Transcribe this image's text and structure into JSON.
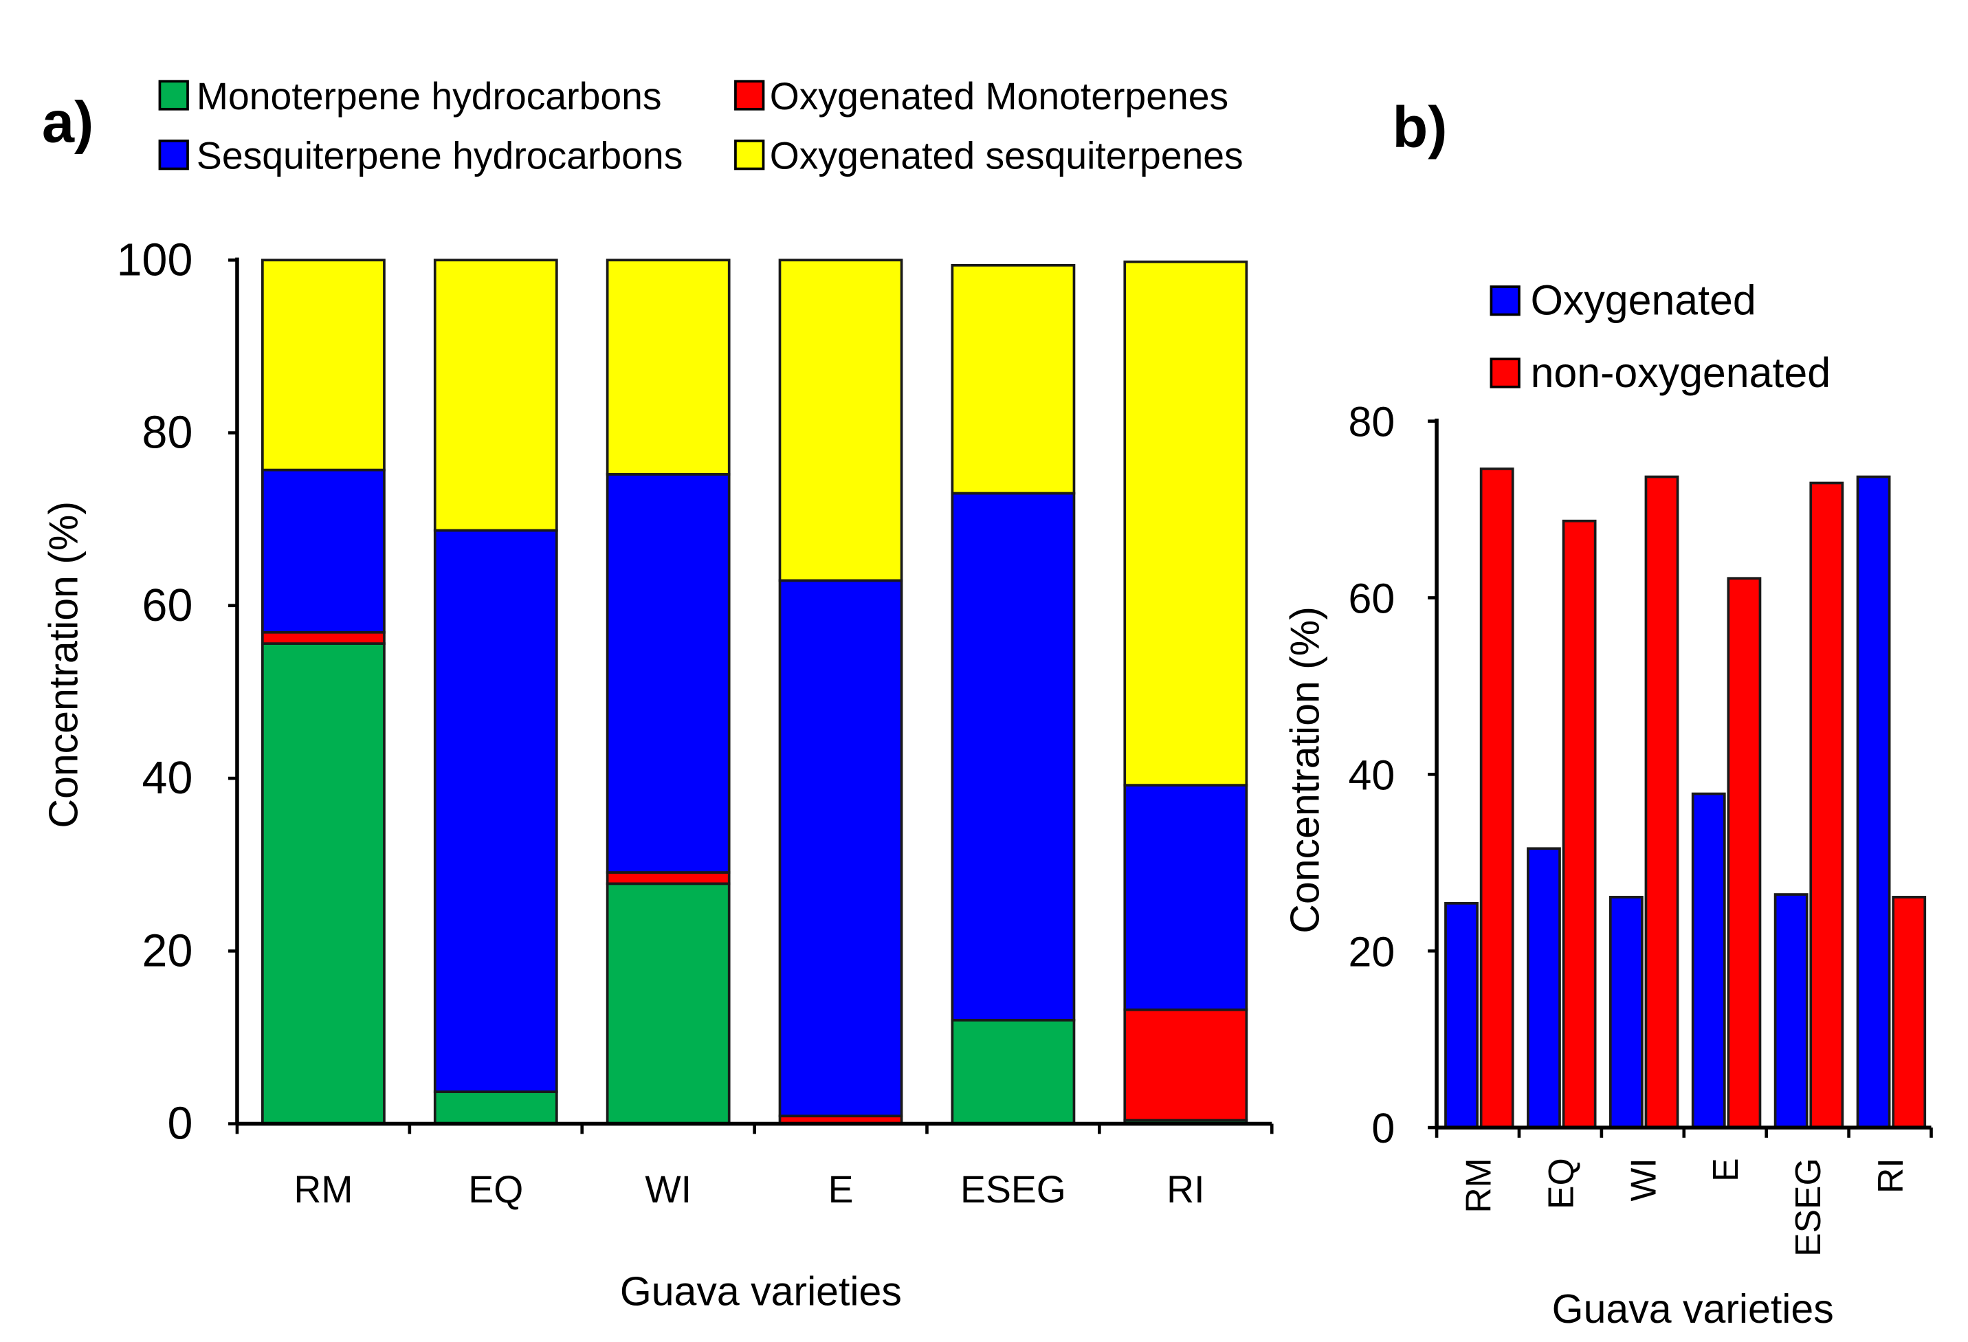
{
  "chart_data": [
    {
      "panel_label": "a)",
      "type": "bar",
      "stacked": true,
      "categories": [
        "RM",
        "EQ",
        "WI",
        "E",
        "ESEG",
        "RI"
      ],
      "series": [
        {
          "name": "Monoterpene hydrocarbons",
          "color": "#00B050",
          "values": [
            55.6,
            3.7,
            27.8,
            0,
            12.0,
            0.4
          ]
        },
        {
          "name": "Oxygenated Monoterpenes",
          "color": "#FF0000",
          "values": [
            1.3,
            0,
            1.3,
            0.9,
            0,
            12.8
          ]
        },
        {
          "name": "Sesquiterpene hydrocarbons",
          "color": "#0000FF",
          "values": [
            18.8,
            65.0,
            46.1,
            62.0,
            61.0,
            26.0
          ]
        },
        {
          "name": "Oxygenated sesquiterpenes",
          "color": "#FFFF00",
          "values": [
            24.3,
            31.3,
            24.8,
            37.1,
            26.4,
            60.6
          ]
        }
      ],
      "xlabel": "Guava varieties",
      "ylabel": "Concentration (%)",
      "ylim": [
        0,
        100
      ],
      "yticks": [
        0,
        20,
        40,
        60,
        80,
        100
      ],
      "legend_position": "top"
    },
    {
      "panel_label": "b)",
      "type": "bar",
      "stacked": false,
      "categories": [
        "RM",
        "EQ",
        "WI",
        "E",
        "ESEG",
        "RI"
      ],
      "series": [
        {
          "name": "Oxygenated",
          "color": "#0000FF",
          "values": [
            25.4,
            31.6,
            26.1,
            37.8,
            26.4,
            73.7
          ]
        },
        {
          "name": "non-oxygenated",
          "color": "#FF0000",
          "values": [
            74.6,
            68.7,
            73.7,
            62.2,
            73.0,
            26.1
          ]
        }
      ],
      "xlabel": "Guava varieties",
      "ylabel": "Concentration (%)",
      "ylim": [
        0,
        80
      ],
      "yticks": [
        0,
        20,
        40,
        60,
        80
      ],
      "legend_position": "top-left"
    }
  ]
}
